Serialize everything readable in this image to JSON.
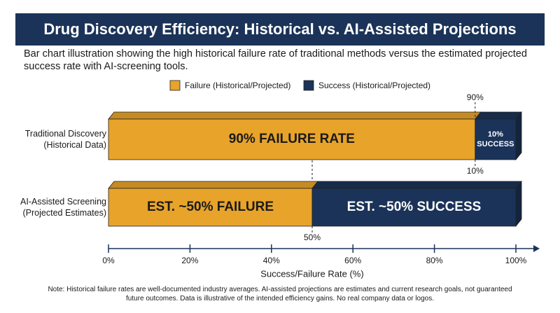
{
  "chart_data": {
    "type": "stacked-barh",
    "title": "Drug Discovery Efficiency: Historical vs. AI-Assisted Projections",
    "subtitle": "Bar chart illustration showing the high historical failure rate of traditional methods versus the estimated projected success rate with AI-screening tools.",
    "categories": [
      "Traditional Discovery (Historical Data)",
      "AI-Assisted Screening (Projected Estimates)"
    ],
    "series": [
      {
        "name": "Failure (Historical/Projected)",
        "color": "#e8a32a",
        "text_color": "#1a1a1a",
        "values": [
          90,
          50
        ],
        "value_labels": [
          "90% FAILURE RATE",
          "EST. ~50% FAILURE"
        ]
      },
      {
        "name": "Success (Historical/Projected)",
        "color": "#1b3358",
        "text_color": "#ffffff",
        "values": [
          10,
          50
        ],
        "value_labels": [
          "10% SUCCESS",
          "EST. ~50% SUCCESS"
        ]
      }
    ],
    "xlim": [
      0,
      100
    ],
    "xticks": [
      {
        "value": 0,
        "label": "0%"
      },
      {
        "value": 20,
        "label": "20%"
      },
      {
        "value": 40,
        "label": "40%"
      },
      {
        "value": 60,
        "label": "60%"
      },
      {
        "value": 80,
        "label": "80%"
      },
      {
        "value": 100,
        "label": "100%"
      }
    ],
    "xlabel": "Success/Failure Rate (%)",
    "annotations": [
      {
        "label": "90%",
        "x": 90,
        "bar": 0,
        "position": "top"
      },
      {
        "label": "10%",
        "x": 90,
        "bar": 0,
        "position": "bottom"
      },
      {
        "label": "50%",
        "x": 50,
        "bar": 1,
        "position": "bottom"
      }
    ],
    "legend": "top",
    "note": "Note: Historical failure rates are well-documented industry averages. AI-assisted projections are estimates and current research goals, not guaranteed future outcomes. Data is illustrative of the intended efficiency gains. No real company data or logos."
  }
}
